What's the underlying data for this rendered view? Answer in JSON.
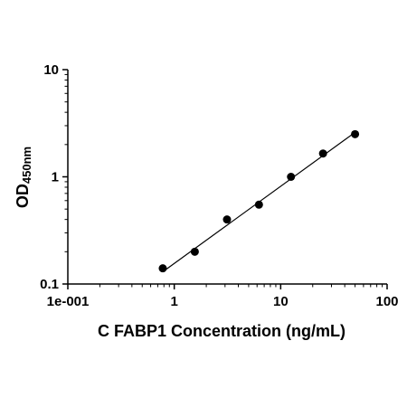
{
  "chart_data": {
    "type": "scatter",
    "title": "",
    "xlabel": "C FABP1 Concentration (ng/mL)",
    "ylabel": "OD",
    "ylabel_subscript": "450nm",
    "xscale": "log",
    "yscale": "log",
    "xlim": [
      0.1,
      100
    ],
    "ylim": [
      0.1,
      10
    ],
    "x_ticks": [
      0.1,
      1,
      10,
      100
    ],
    "x_tick_labels": [
      "1e-001",
      "1",
      "10",
      "100"
    ],
    "y_ticks": [
      0.1,
      1,
      10
    ],
    "y_tick_labels": [
      "0.1",
      "1",
      "10"
    ],
    "grid": false,
    "legend": "none",
    "series": [
      {
        "x": [
          0.78,
          1.56,
          3.13,
          6.25,
          12.5,
          25,
          50
        ],
        "y": [
          0.14,
          0.2,
          0.4,
          0.55,
          1.0,
          1.65,
          2.5
        ]
      }
    ],
    "fit_line": {
      "x": [
        0.78,
        50
      ],
      "y": [
        0.13,
        2.6
      ]
    },
    "colors": {
      "points": "#000000",
      "line": "#000000",
      "axis": "#000000"
    }
  }
}
